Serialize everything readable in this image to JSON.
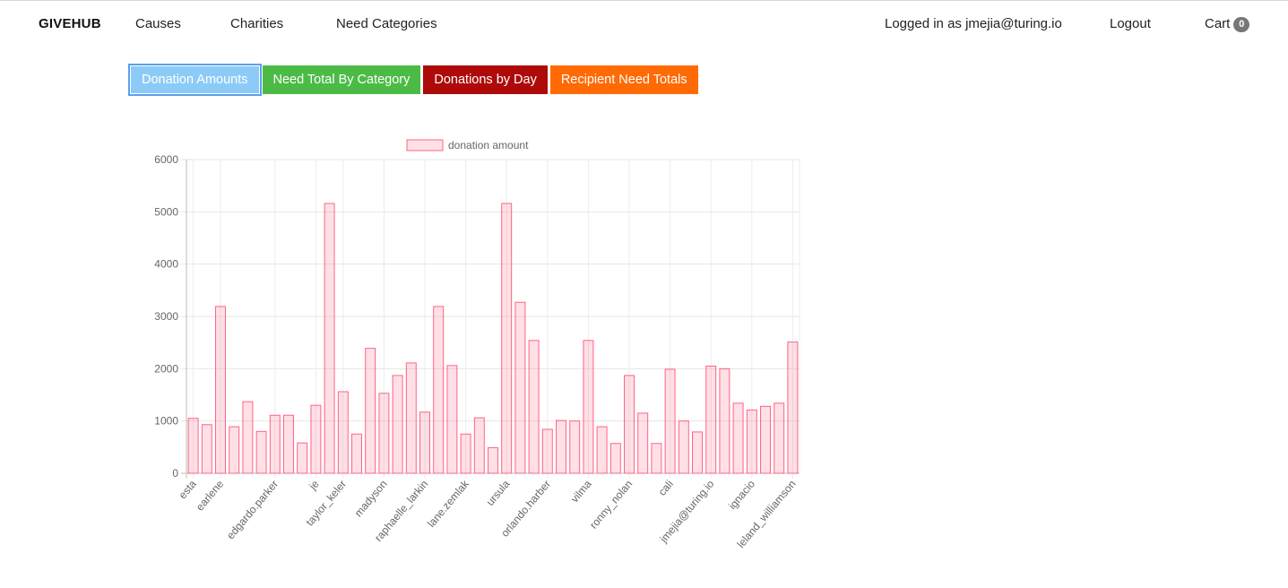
{
  "nav": {
    "brand": "GIVEHUB",
    "links": [
      "Causes",
      "Charities",
      "Need Categories"
    ],
    "user_status": "Logged in as jmejia@turing.io",
    "logout": "Logout",
    "cart_label": "Cart",
    "cart_count": "0"
  },
  "tabs": [
    {
      "label": "Donation Amounts",
      "color": "#8ccbf7",
      "active": true
    },
    {
      "label": "Need Total By Category",
      "color": "#4cbb46",
      "active": false
    },
    {
      "label": "Donations by Day",
      "color": "#ae0a0a",
      "active": false
    },
    {
      "label": "Recipient Need Totals",
      "color": "#ff6a05",
      "active": false
    }
  ],
  "chart_data": {
    "type": "bar",
    "title": "",
    "xlabel": "",
    "ylabel": "",
    "ylim": [
      0,
      6000
    ],
    "yticks": [
      0,
      1000,
      2000,
      3000,
      4000,
      5000,
      6000
    ],
    "legend": "donation amount",
    "bar_fill": "rgba(255,99,132,0.2)",
    "bar_stroke": "rgba(255,99,132,1)",
    "categories": [
      "esta",
      "",
      "earlene",
      "",
      "",
      "",
      "edgardo.parker",
      "",
      "",
      "je",
      "",
      "taylor_keler",
      "",
      "",
      "madyson",
      "",
      "",
      "raphaelle_larkin",
      "",
      "",
      "lane.zemlak",
      "",
      "",
      "ursula",
      "",
      "",
      "orlando.harber",
      "",
      "",
      "vilma",
      "",
      "",
      "ronny_nolan",
      "",
      "",
      "cali",
      "",
      "",
      "jmejia@turing.io",
      "",
      "",
      "ignacio",
      "",
      "",
      "leland_williamson"
    ],
    "values": [
      1050,
      930,
      3190,
      890,
      1370,
      800,
      1110,
      1110,
      580,
      1300,
      5160,
      1560,
      750,
      2390,
      1530,
      1870,
      2110,
      1170,
      3190,
      2060,
      750,
      1060,
      490,
      5160,
      3270,
      2540,
      840,
      1010,
      1000,
      2540,
      890,
      570,
      1870,
      1150,
      570,
      1990,
      1000,
      790,
      2050,
      2000,
      1340,
      1210,
      1280,
      1340,
      2510
    ]
  }
}
